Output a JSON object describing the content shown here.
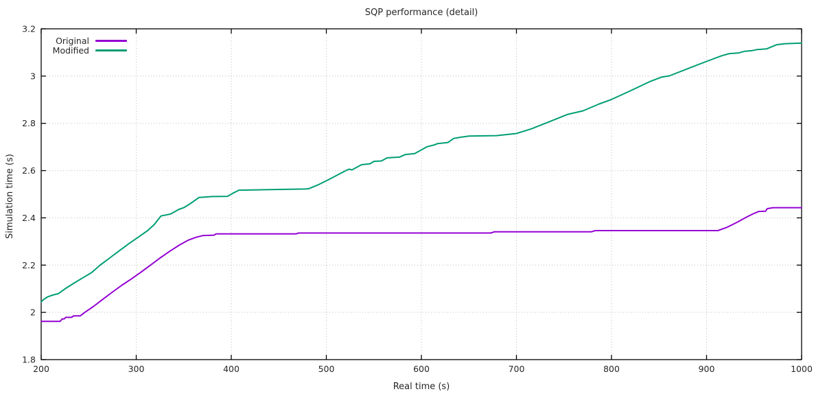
{
  "chart_data": {
    "type": "line",
    "title": "SQP performance (detail)",
    "xlabel": "Real time (s)",
    "ylabel": "Simulation time (s)",
    "xlim": [
      200,
      1000
    ],
    "ylim": [
      1.8,
      3.2
    ],
    "grid": true,
    "legend_position": "top-left-inside",
    "axis_color": "#000000",
    "grid_color": "#bdbdbd",
    "text_color": "#262626",
    "background_color": "#ffffff",
    "x_ticks": {
      "values": [
        200,
        300,
        400,
        500,
        600,
        700,
        800,
        900,
        1000
      ],
      "labels": [
        "200",
        "300",
        "400",
        "500",
        "600",
        "700",
        "800",
        "900",
        "1000"
      ]
    },
    "y_ticks": {
      "values": [
        1.8,
        2.0,
        2.2,
        2.4,
        2.6,
        2.8,
        3.0,
        3.2
      ],
      "labels": [
        "1.8",
        "2",
        "2.2",
        "2.4",
        "2.6",
        "2.8",
        "3",
        "3.2"
      ]
    },
    "series": [
      {
        "name": "Original",
        "color": "#9400d3",
        "points": [
          [
            200,
            1.962
          ],
          [
            220,
            1.962
          ],
          [
            222,
            1.972
          ],
          [
            224,
            1.972
          ],
          [
            226,
            1.979
          ],
          [
            232,
            1.979
          ],
          [
            234,
            1.985
          ],
          [
            241,
            1.985
          ],
          [
            246,
            2.0
          ],
          [
            255,
            2.025
          ],
          [
            265,
            2.056
          ],
          [
            275,
            2.086
          ],
          [
            285,
            2.115
          ],
          [
            295,
            2.142
          ],
          [
            305,
            2.17
          ],
          [
            315,
            2.2
          ],
          [
            325,
            2.23
          ],
          [
            335,
            2.258
          ],
          [
            345,
            2.284
          ],
          [
            355,
            2.306
          ],
          [
            363,
            2.318
          ],
          [
            370,
            2.325
          ],
          [
            382,
            2.327
          ],
          [
            384,
            2.332
          ],
          [
            468,
            2.332
          ],
          [
            471,
            2.336
          ],
          [
            673,
            2.336
          ],
          [
            677,
            2.341
          ],
          [
            779,
            2.341
          ],
          [
            783,
            2.346
          ],
          [
            912,
            2.346
          ],
          [
            922,
            2.361
          ],
          [
            932,
            2.381
          ],
          [
            942,
            2.403
          ],
          [
            950,
            2.419
          ],
          [
            955,
            2.427
          ],
          [
            962,
            2.428
          ],
          [
            964,
            2.439
          ],
          [
            970,
            2.443
          ],
          [
            1000,
            2.443
          ]
        ]
      },
      {
        "name": "Modified",
        "color": "#009e73",
        "points": [
          [
            200,
            2.045
          ],
          [
            203,
            2.056
          ],
          [
            207,
            2.066
          ],
          [
            212,
            2.073
          ],
          [
            218,
            2.079
          ],
          [
            226,
            2.102
          ],
          [
            235,
            2.125
          ],
          [
            245,
            2.149
          ],
          [
            253,
            2.168
          ],
          [
            262,
            2.2
          ],
          [
            272,
            2.23
          ],
          [
            282,
            2.26
          ],
          [
            292,
            2.29
          ],
          [
            302,
            2.318
          ],
          [
            312,
            2.346
          ],
          [
            319,
            2.372
          ],
          [
            326,
            2.408
          ],
          [
            336,
            2.416
          ],
          [
            345,
            2.436
          ],
          [
            350,
            2.443
          ],
          [
            356,
            2.458
          ],
          [
            366,
            2.486
          ],
          [
            380,
            2.49
          ],
          [
            396,
            2.491
          ],
          [
            402,
            2.505
          ],
          [
            408,
            2.517
          ],
          [
            478,
            2.522
          ],
          [
            482,
            2.524
          ],
          [
            492,
            2.541
          ],
          [
            502,
            2.561
          ],
          [
            512,
            2.582
          ],
          [
            521,
            2.601
          ],
          [
            524,
            2.606
          ],
          [
            527,
            2.603
          ],
          [
            532,
            2.614
          ],
          [
            537,
            2.625
          ],
          [
            546,
            2.629
          ],
          [
            550,
            2.639
          ],
          [
            558,
            2.641
          ],
          [
            564,
            2.654
          ],
          [
            577,
            2.657
          ],
          [
            583,
            2.668
          ],
          [
            593,
            2.672
          ],
          [
            601,
            2.69
          ],
          [
            606,
            2.701
          ],
          [
            613,
            2.708
          ],
          [
            617,
            2.714
          ],
          [
            628,
            2.719
          ],
          [
            634,
            2.736
          ],
          [
            641,
            2.741
          ],
          [
            650,
            2.746
          ],
          [
            679,
            2.748
          ],
          [
            691,
            2.753
          ],
          [
            700,
            2.757
          ],
          [
            716,
            2.777
          ],
          [
            739,
            2.814
          ],
          [
            754,
            2.838
          ],
          [
            770,
            2.853
          ],
          [
            787,
            2.882
          ],
          [
            800,
            2.901
          ],
          [
            819,
            2.936
          ],
          [
            840,
            2.976
          ],
          [
            853,
            2.996
          ],
          [
            861,
            3.001
          ],
          [
            880,
            3.031
          ],
          [
            900,
            3.062
          ],
          [
            916,
            3.086
          ],
          [
            924,
            3.095
          ],
          [
            934,
            3.098
          ],
          [
            940,
            3.105
          ],
          [
            948,
            3.108
          ],
          [
            953,
            3.112
          ],
          [
            963,
            3.115
          ],
          [
            974,
            3.133
          ],
          [
            982,
            3.137
          ],
          [
            1000,
            3.14
          ]
        ]
      }
    ]
  }
}
